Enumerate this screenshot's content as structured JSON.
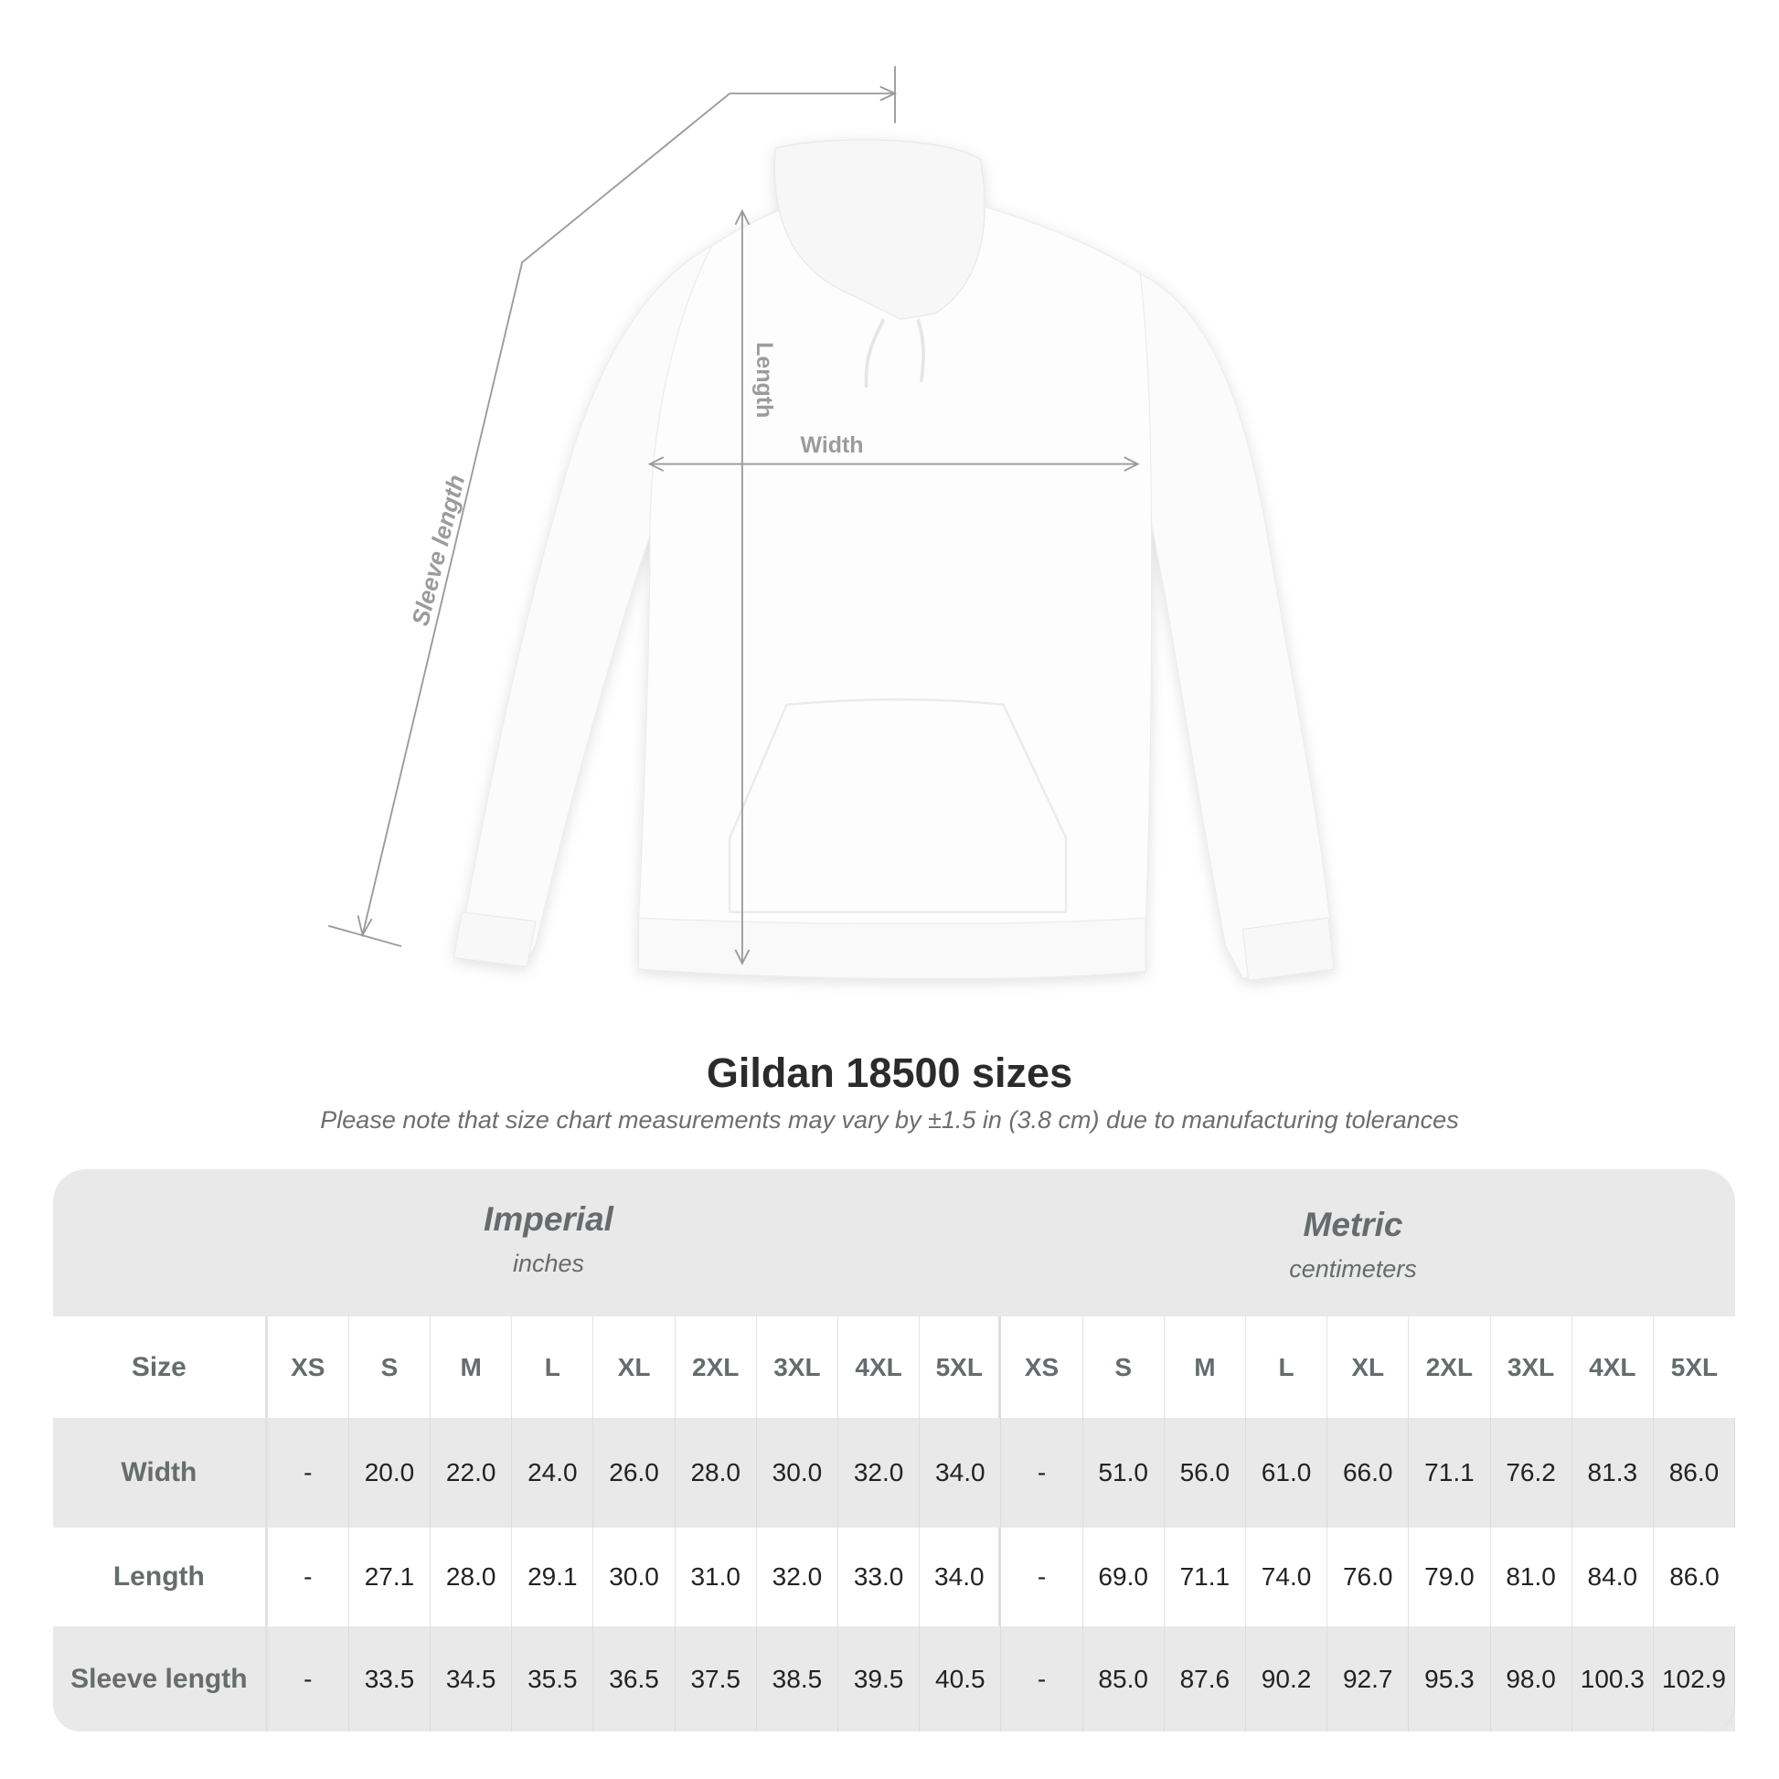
{
  "illustration": {
    "labels": {
      "length": "Length",
      "width": "Width",
      "sleeve": "Sleeve length"
    },
    "garment_color": "#ffffff",
    "guide_color": "#9b9b9b"
  },
  "title": "Gildan 18500 sizes",
  "subtitle": "Please note that size chart measurements may vary by ±1.5 in (3.8 cm) due to manufacturing tolerances",
  "table": {
    "imperial": {
      "name": "Imperial",
      "unit": "inches"
    },
    "metric": {
      "name": "Metric",
      "unit": "centimeters"
    },
    "size_label": "Size",
    "sizes": [
      "XS",
      "S",
      "M",
      "L",
      "XL",
      "2XL",
      "3XL",
      "4XL",
      "5XL"
    ],
    "rows": [
      {
        "label": "Width",
        "imperial": [
          "-",
          "20.0",
          "22.0",
          "24.0",
          "26.0",
          "28.0",
          "30.0",
          "32.0",
          "34.0"
        ],
        "metric": [
          "-",
          "51.0",
          "56.0",
          "61.0",
          "66.0",
          "71.1",
          "76.2",
          "81.3",
          "86.0"
        ]
      },
      {
        "label": "Length",
        "imperial": [
          "-",
          "27.1",
          "28.0",
          "29.1",
          "30.0",
          "31.0",
          "32.0",
          "33.0",
          "34.0"
        ],
        "metric": [
          "-",
          "69.0",
          "71.1",
          "74.0",
          "76.0",
          "79.0",
          "81.0",
          "84.0",
          "86.0"
        ]
      },
      {
        "label": "Sleeve length",
        "imperial": [
          "-",
          "33.5",
          "34.5",
          "35.5",
          "36.5",
          "37.5",
          "38.5",
          "39.5",
          "40.5"
        ],
        "metric": [
          "-",
          "85.0",
          "87.6",
          "90.2",
          "92.7",
          "95.3",
          "98.0",
          "100.3",
          "102.9"
        ]
      }
    ]
  }
}
